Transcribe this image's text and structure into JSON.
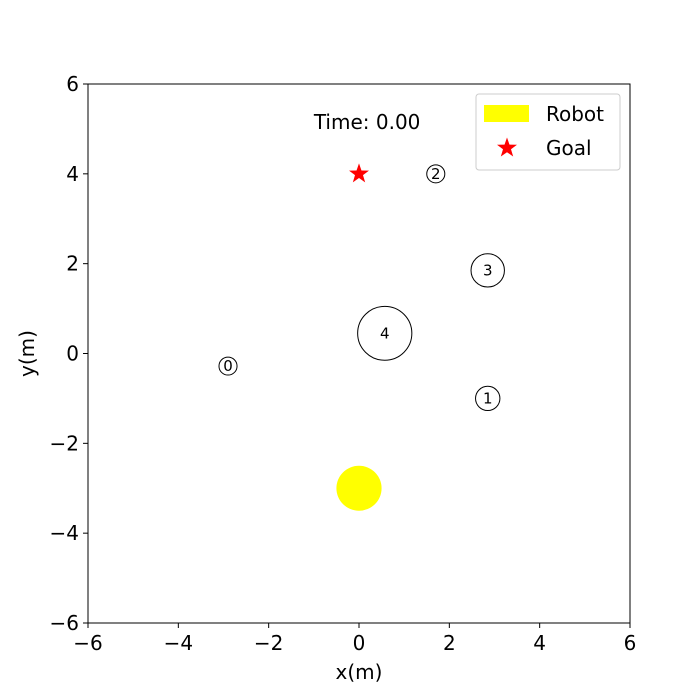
{
  "chart_data": {
    "type": "scatter",
    "xlabel": "x(m)",
    "ylabel": "y(m)",
    "xlim": [
      -6,
      6
    ],
    "ylim": [
      -6,
      6
    ],
    "xticks": [
      -6,
      -4,
      -2,
      0,
      2,
      4,
      6
    ],
    "yticks": [
      -6,
      -4,
      -2,
      0,
      2,
      4,
      6
    ],
    "xtick_labels": [
      "−6",
      "−4",
      "−2",
      "0",
      "2",
      "4",
      "6"
    ],
    "ytick_labels": [
      "−6",
      "−4",
      "−2",
      "0",
      "2",
      "4",
      "6"
    ],
    "grid": false,
    "time_text": "Time: 0.00",
    "time_pos": [
      -1.0,
      5.15
    ],
    "robot": {
      "x": 0,
      "y": -3,
      "radius": 0.5,
      "color": "#ffff00"
    },
    "goal": {
      "x": 0,
      "y": 4,
      "color": "#ff0000"
    },
    "obstacles": [
      {
        "id": "0",
        "x": -2.9,
        "y": -0.28,
        "radius": 0.2
      },
      {
        "id": "1",
        "x": 2.85,
        "y": -1.0,
        "radius": 0.27
      },
      {
        "id": "2",
        "x": 1.7,
        "y": 4.0,
        "radius": 0.2
      },
      {
        "id": "3",
        "x": 2.85,
        "y": 1.85,
        "radius": 0.37
      },
      {
        "id": "4",
        "x": 0.57,
        "y": 0.45,
        "radius": 0.6
      }
    ],
    "legend": {
      "position": "upper-right",
      "entries": [
        {
          "label": "Robot",
          "marker": "rect",
          "color": "#ffff00"
        },
        {
          "label": "Goal",
          "marker": "star",
          "color": "#ff0000"
        }
      ]
    }
  }
}
